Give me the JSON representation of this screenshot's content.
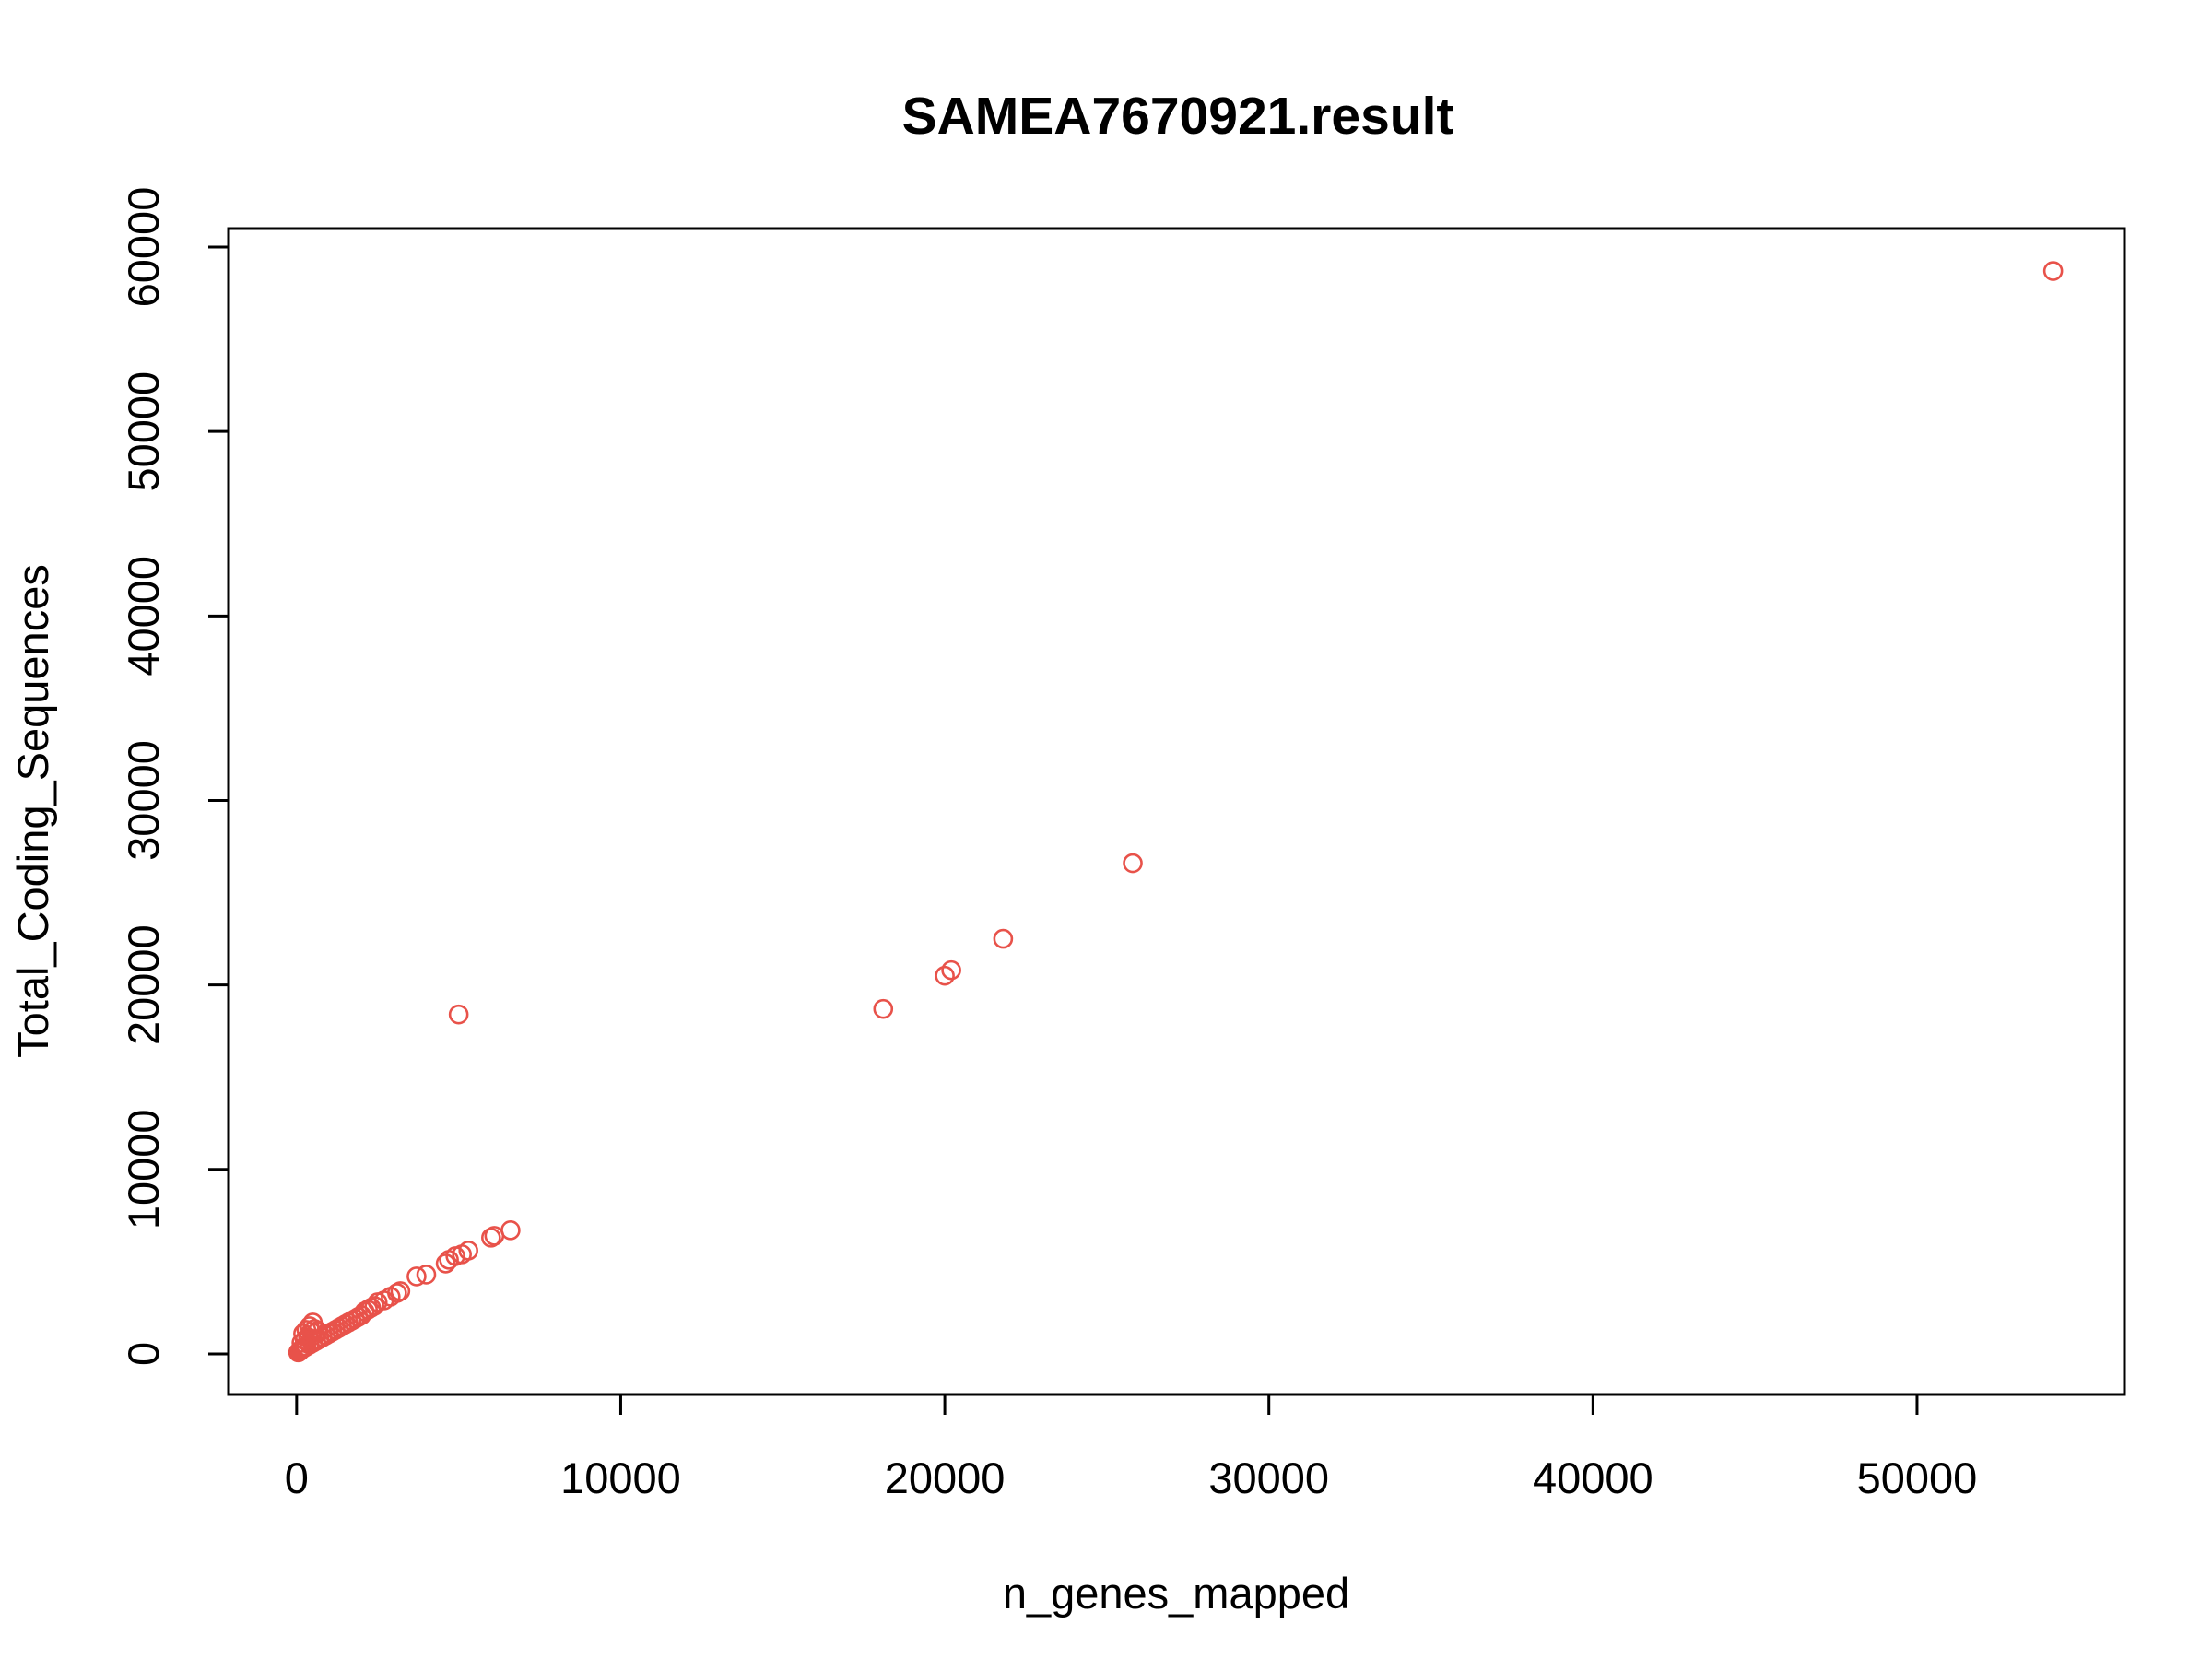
{
  "chart_data": {
    "type": "scatter",
    "title": "SAMEA7670921.result",
    "xlabel": "n_genes_mapped",
    "ylabel": "Total_Coding_Sequences",
    "xlim": [
      -2100,
      56400
    ],
    "ylim": [
      -2200,
      61000
    ],
    "xticks": [
      0,
      10000,
      20000,
      30000,
      40000,
      50000
    ],
    "xtick_labels": [
      "0",
      "10000",
      "20000",
      "30000",
      "40000",
      "50000"
    ],
    "yticks": [
      0,
      10000,
      20000,
      30000,
      40000,
      50000,
      60000
    ],
    "ytick_labels": [
      "0",
      "10000",
      "20000",
      "30000",
      "40000",
      "50000",
      "60000"
    ],
    "grid": false,
    "legend": null,
    "point_color": "#E8524A",
    "points": [
      [
        54200,
        58700
      ],
      [
        25800,
        26600
      ],
      [
        21800,
        22500
      ],
      [
        20200,
        20800
      ],
      [
        20000,
        20500
      ],
      [
        18100,
        18700
      ],
      [
        5000,
        18400
      ],
      [
        6600,
        6700
      ],
      [
        6100,
        6400
      ],
      [
        6000,
        6300
      ],
      [
        5300,
        5600
      ],
      [
        5100,
        5400
      ],
      [
        4900,
        5300
      ],
      [
        4700,
        5100
      ],
      [
        4600,
        4900
      ],
      [
        4000,
        4300
      ],
      [
        3700,
        4200
      ],
      [
        3200,
        3400
      ],
      [
        3100,
        3300
      ],
      [
        2900,
        3100
      ],
      [
        2700,
        2900
      ],
      [
        2500,
        2800
      ],
      [
        2400,
        2600
      ],
      [
        2300,
        2500
      ],
      [
        2200,
        2400
      ],
      [
        2100,
        2300
      ],
      [
        2000,
        2100
      ],
      [
        1900,
        2000
      ],
      [
        1800,
        1900
      ],
      [
        1700,
        1800
      ],
      [
        1600,
        1700
      ],
      [
        1500,
        1600
      ],
      [
        1400,
        1500
      ],
      [
        1300,
        1400
      ],
      [
        1200,
        1300
      ],
      [
        1100,
        1200
      ],
      [
        1000,
        1100
      ],
      [
        900,
        1000
      ],
      [
        800,
        900
      ],
      [
        700,
        800
      ],
      [
        600,
        700
      ],
      [
        500,
        600
      ],
      [
        400,
        500
      ],
      [
        300,
        400
      ],
      [
        250,
        350
      ],
      [
        200,
        300
      ],
      [
        150,
        250
      ],
      [
        120,
        200
      ],
      [
        100,
        150
      ],
      [
        80,
        120
      ],
      [
        60,
        100
      ],
      [
        50,
        80
      ],
      [
        500,
        1700
      ],
      [
        400,
        1500
      ],
      [
        300,
        1300
      ],
      [
        200,
        1100
      ],
      [
        350,
        900
      ],
      [
        250,
        750
      ],
      [
        150,
        600
      ],
      [
        450,
        1200
      ],
      [
        550,
        1350
      ],
      [
        650,
        1250
      ]
    ]
  }
}
